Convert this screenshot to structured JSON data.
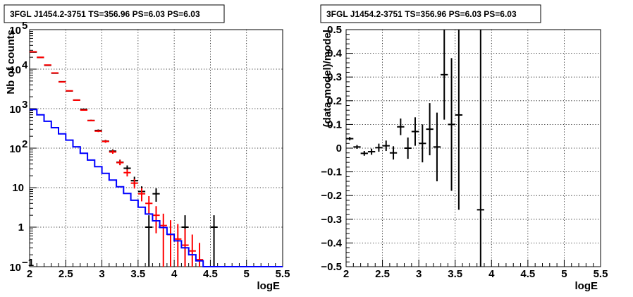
{
  "chart_data": [
    {
      "type": "scatter",
      "title": "3FGL J1454.2-3751 TS=356.96 PS=6.03 PS=6.03",
      "xlabel": "logE",
      "ylabel": "Nb of counts",
      "xlim": [
        2,
        5.5
      ],
      "ylim": [
        0.1,
        100000
      ],
      "yscale": "log",
      "grid": true,
      "xticks": [
        "2",
        "2.5",
        "3",
        "3.5",
        "4",
        "4.5",
        "5",
        "5.5"
      ],
      "yticks": [
        "10⁻¹",
        "1",
        "10",
        "10²",
        "10³",
        "10⁴",
        "10⁵"
      ],
      "series": [
        {
          "color": "#000000",
          "style": "error-bar",
          "points": [
            {
              "x": 2.05,
              "y": 27000,
              "ylo": 26700,
              "yhi": 27300
            },
            {
              "x": 2.15,
              "y": 19800,
              "ylo": 19550,
              "yhi": 20050
            },
            {
              "x": 2.25,
              "y": 12500,
              "ylo": 12300,
              "yhi": 12700
            },
            {
              "x": 2.35,
              "y": 7900,
              "ylo": 7750,
              "yhi": 8050
            },
            {
              "x": 2.45,
              "y": 4800,
              "ylo": 4690,
              "yhi": 4910
            },
            {
              "x": 2.55,
              "y": 2800,
              "ylo": 2720,
              "yhi": 2880
            },
            {
              "x": 2.65,
              "y": 1650,
              "ylo": 1600,
              "yhi": 1700
            },
            {
              "x": 2.75,
              "y": 960,
              "ylo": 930,
              "yhi": 990
            },
            {
              "x": 2.85,
              "y": 500,
              "ylo": 478,
              "yhi": 522
            },
            {
              "x": 2.95,
              "y": 280,
              "ylo": 264,
              "yhi": 297
            },
            {
              "x": 3.05,
              "y": 150,
              "ylo": 138,
              "yhi": 162
            },
            {
              "x": 3.15,
              "y": 84,
              "ylo": 75,
              "yhi": 93
            },
            {
              "x": 3.25,
              "y": 44,
              "ylo": 38,
              "yhi": 51
            },
            {
              "x": 3.35,
              "y": 31,
              "ylo": 25.5,
              "yhi": 36.5
            },
            {
              "x": 3.45,
              "y": 15,
              "ylo": 11.2,
              "yhi": 18.9
            },
            {
              "x": 3.55,
              "y": 8,
              "ylo": 5.2,
              "yhi": 10.8
            },
            {
              "x": 3.65,
              "y": 1,
              "ylo": 0.1,
              "yhi": 2
            },
            {
              "x": 3.75,
              "y": 7,
              "ylo": 4.4,
              "yhi": 9.6
            },
            {
              "x": 4.15,
              "y": 1,
              "ylo": 0.1,
              "yhi": 2
            },
            {
              "x": 4.55,
              "y": 1,
              "ylo": 0.1,
              "yhi": 2
            }
          ]
        },
        {
          "color": "#ff0000",
          "style": "error-bar",
          "points": [
            {
              "x": 2.05,
              "y": 27500,
              "ylo": 27200,
              "yhi": 27800
            },
            {
              "x": 2.15,
              "y": 19900,
              "ylo": 19650,
              "yhi": 20150
            },
            {
              "x": 2.25,
              "y": 12700,
              "ylo": 12500,
              "yhi": 12900
            },
            {
              "x": 2.35,
              "y": 8000,
              "ylo": 7850,
              "yhi": 8150
            },
            {
              "x": 2.45,
              "y": 4750,
              "ylo": 4640,
              "yhi": 4860
            },
            {
              "x": 2.55,
              "y": 2820,
              "ylo": 2740,
              "yhi": 2900
            },
            {
              "x": 2.65,
              "y": 1640,
              "ylo": 1590,
              "yhi": 1690
            },
            {
              "x": 2.75,
              "y": 920,
              "ylo": 885,
              "yhi": 955
            },
            {
              "x": 2.85,
              "y": 500,
              "ylo": 478,
              "yhi": 522
            },
            {
              "x": 2.95,
              "y": 270,
              "ylo": 255,
              "yhi": 286
            },
            {
              "x": 3.05,
              "y": 148,
              "ylo": 137,
              "yhi": 160
            },
            {
              "x": 3.15,
              "y": 80,
              "ylo": 72,
              "yhi": 89
            },
            {
              "x": 3.25,
              "y": 43,
              "ylo": 37,
              "yhi": 50
            },
            {
              "x": 3.35,
              "y": 24,
              "ylo": 19.2,
              "yhi": 29
            },
            {
              "x": 3.45,
              "y": 13,
              "ylo": 9.5,
              "yhi": 16.5
            },
            {
              "x": 3.55,
              "y": 7,
              "ylo": 4.5,
              "yhi": 9.8
            },
            {
              "x": 3.65,
              "y": 4,
              "ylo": 2.1,
              "yhi": 6.1
            },
            {
              "x": 3.75,
              "y": 2,
              "ylo": 0.7,
              "yhi": 3.4
            },
            {
              "x": 3.85,
              "y": 1.1,
              "ylo": 0.1,
              "yhi": 2.2
            },
            {
              "x": 3.95,
              "y": 0.65,
              "ylo": 0.1,
              "yhi": 1.5
            },
            {
              "x": 4.05,
              "y": 0.5,
              "ylo": 0.1,
              "yhi": 1.2
            },
            {
              "x": 4.15,
              "y": 0.35,
              "ylo": 0.1,
              "yhi": 0.9
            },
            {
              "x": 4.25,
              "y": 0.25,
              "ylo": 0.1,
              "yhi": 0.65
            },
            {
              "x": 4.35,
              "y": 0.15,
              "ylo": 0.1,
              "yhi": 0.4
            }
          ]
        },
        {
          "color": "#0000ff",
          "style": "step",
          "bin_width": 0.1,
          "x": [
            2.05,
            2.15,
            2.25,
            2.35,
            2.45,
            2.55,
            2.65,
            2.75,
            2.85,
            2.95,
            3.05,
            3.15,
            3.25,
            3.35,
            3.45,
            3.55,
            3.65,
            3.75,
            3.85,
            3.95,
            4.05,
            4.15,
            4.25,
            4.35,
            4.45,
            4.55,
            4.65,
            4.75,
            4.85,
            4.95,
            5.05,
            5.15,
            5.25,
            5.35,
            5.45
          ],
          "values": [
            950,
            700,
            480,
            330,
            230,
            160,
            108,
            74,
            50,
            34,
            23,
            15.5,
            10.5,
            7.1,
            4.8,
            3.2,
            2.15,
            1.45,
            0.98,
            0.66,
            0.45,
            0.3,
            0.2,
            0.14,
            0.1,
            0.1,
            0.1,
            0.1,
            0.1,
            0.1,
            0.1,
            0.1,
            0.1,
            0.1,
            0.1
          ]
        }
      ]
    },
    {
      "type": "scatter",
      "title": "3FGL J1454.2-3751 TS=356.96 PS=6.03 PS=6.03",
      "xlabel": "logE",
      "ylabel": "(data-model)/model",
      "xlim": [
        2,
        5.5
      ],
      "ylim": [
        -0.5,
        0.5
      ],
      "grid": true,
      "xticks": [
        "2",
        "2.5",
        "3",
        "3.5",
        "4",
        "4.5",
        "5",
        "5.5"
      ],
      "yticks": [
        "−0.5",
        "−0.4",
        "−0.3",
        "−0.2",
        "−0.1",
        "0",
        "0.1",
        "0.2",
        "0.3",
        "0.4",
        "0.5"
      ],
      "series": [
        {
          "color": "#000000",
          "style": "error-bar",
          "points": [
            {
              "x": 2.05,
              "y": 0.04,
              "ylo": 0.033,
              "yhi": 0.047
            },
            {
              "x": 2.15,
              "y": 0.005,
              "ylo": -0.003,
              "yhi": 0.013
            },
            {
              "x": 2.25,
              "y": -0.022,
              "ylo": -0.032,
              "yhi": -0.012
            },
            {
              "x": 2.35,
              "y": -0.015,
              "ylo": -0.028,
              "yhi": -0.002
            },
            {
              "x": 2.45,
              "y": 0.002,
              "ylo": -0.015,
              "yhi": 0.019
            },
            {
              "x": 2.55,
              "y": 0.01,
              "ylo": -0.012,
              "yhi": 0.032
            },
            {
              "x": 2.65,
              "y": -0.02,
              "ylo": -0.048,
              "yhi": 0.008
            },
            {
              "x": 2.75,
              "y": 0.09,
              "ylo": 0.055,
              "yhi": 0.125
            },
            {
              "x": 2.85,
              "y": 0,
              "ylo": -0.045,
              "yhi": 0.045
            },
            {
              "x": 2.95,
              "y": 0.07,
              "ylo": 0.01,
              "yhi": 0.13
            },
            {
              "x": 3.05,
              "y": 0.02,
              "ylo": -0.06,
              "yhi": 0.1
            },
            {
              "x": 3.15,
              "y": 0.08,
              "ylo": -0.03,
              "yhi": 0.19
            },
            {
              "x": 3.25,
              "y": 0.005,
              "ylo": -0.14,
              "yhi": 0.15
            },
            {
              "x": 3.35,
              "y": 0.31,
              "ylo": 0.12,
              "yhi": 0.5
            },
            {
              "x": 3.45,
              "y": 0.1,
              "ylo": -0.18,
              "yhi": 0.38
            },
            {
              "x": 3.55,
              "y": 0.14,
              "ylo": -0.26,
              "yhi": 0.5
            },
            {
              "x": 3.85,
              "y": -0.26,
              "ylo": -0.5,
              "yhi": 0.5
            }
          ]
        }
      ]
    }
  ]
}
